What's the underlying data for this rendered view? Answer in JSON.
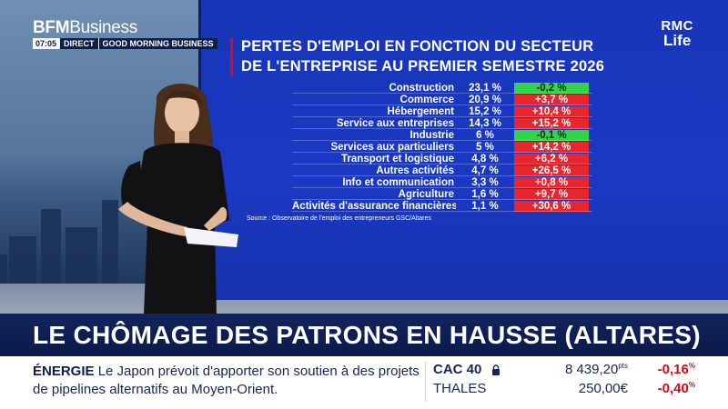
{
  "channel": {
    "brand": "BFM",
    "brand_suffix": "Business",
    "time": "07:05",
    "live_label": "DIRECT",
    "show_name": "GOOD MORNING BUSINESS"
  },
  "screen": {
    "title_line1": "PERTES D'EMPLOI EN FONCTION DU SECTEUR",
    "title_line2": "DE L'ENTREPRISE AU PREMIER SEMESTRE 2026",
    "logo_line1": "RMC",
    "logo_line2": "Life",
    "rows": [
      {
        "sector": "Construction",
        "share": "23,1 %",
        "change": "-0,2 %",
        "trend": "down"
      },
      {
        "sector": "Commerce",
        "share": "20,9 %",
        "change": "+3,7 %",
        "trend": "up"
      },
      {
        "sector": "Hébergement",
        "share": "15,2 %",
        "change": "+10,4 %",
        "trend": "up"
      },
      {
        "sector": "Service aux entreprises",
        "share": "14,3 %",
        "change": "+15,2 %",
        "trend": "up"
      },
      {
        "sector": "Industrie",
        "share": "6 %",
        "change": "-0,1 %",
        "trend": "down"
      },
      {
        "sector": "Services aux particuliers",
        "share": "5 %",
        "change": "+14,2 %",
        "trend": "up"
      },
      {
        "sector": "Transport et logistique",
        "share": "4,8 %",
        "change": "+6,2 %",
        "trend": "up"
      },
      {
        "sector": "Autres activités",
        "share": "4,7 %",
        "change": "+26,5 %",
        "trend": "up"
      },
      {
        "sector": "Info et communication",
        "share": "3,3 %",
        "change": "+0,8 %",
        "trend": "up"
      },
      {
        "sector": "Agriculture",
        "share": "1,6 %",
        "change": "+9,7 %",
        "trend": "up"
      },
      {
        "sector": "Activités d'assurance financières",
        "share": "1,1 %",
        "change": "+30,6 %",
        "trend": "up"
      }
    ],
    "source": "Source : Observatoire de l'emploi des entrepreneurs GSC/Altares"
  },
  "headline": "LE CHÔMAGE DES PATRONS EN HAUSSE (ALTARES)",
  "ticker": {
    "news_tag": "ÉNERGIE",
    "news_text": "Le Japon prévoit d'apporter son soutien à des projets de pipelines alternatifs au Moyen-Orient.",
    "markets": [
      {
        "name": "CAC 40",
        "value": "8 439,20",
        "value_unit": "pts",
        "change": "-0,16",
        "change_unit": "%"
      },
      {
        "name": "THALES",
        "value": "250,00€",
        "value_unit": "",
        "change": "-0,40",
        "change_unit": "%"
      }
    ],
    "colors": {
      "negative": "#e30613",
      "positive_bg": "#e8262d",
      "negative_bg": "#32d44a"
    }
  }
}
